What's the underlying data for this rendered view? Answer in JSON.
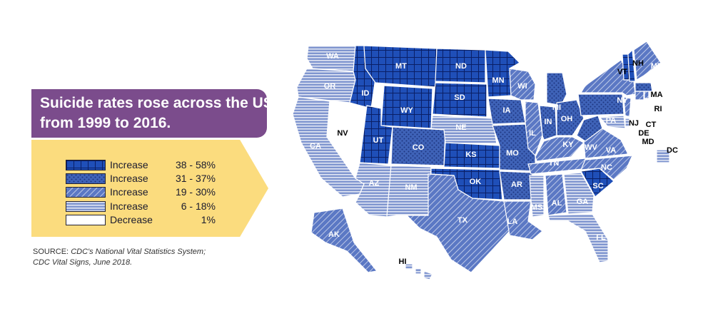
{
  "headline": {
    "line1": "Suicide rates rose across the US",
    "line2": "from 1999 to 2016."
  },
  "legend": [
    {
      "key": "c1",
      "label": "Increase",
      "range": "38 - 58%",
      "color": "#1f4fb8"
    },
    {
      "key": "c2",
      "label": "Increase",
      "range": "31 - 37%",
      "color": "#3f63b8"
    },
    {
      "key": "c3",
      "label": "Increase",
      "range": "19 - 30%",
      "color": "#5b78c4"
    },
    {
      "key": "c4",
      "label": "Increase",
      "range": "6 - 18%",
      "color": "#7f95cf"
    },
    {
      "key": "c5",
      "label": "Decrease",
      "range": "1%",
      "color": "#ffffff"
    }
  ],
  "source": {
    "prefix": "SOURCE:",
    "line1": "CDC's National Vital Statistics System;",
    "line2": "CDC Vital Signs, June 2018."
  },
  "states": [
    {
      "id": "WA",
      "cat": "c4"
    },
    {
      "id": "OR",
      "cat": "c4"
    },
    {
      "id": "CA",
      "cat": "c4"
    },
    {
      "id": "NV",
      "cat": "c5"
    },
    {
      "id": "ID",
      "cat": "c1"
    },
    {
      "id": "MT",
      "cat": "c1"
    },
    {
      "id": "WY",
      "cat": "c1"
    },
    {
      "id": "UT",
      "cat": "c1"
    },
    {
      "id": "AZ",
      "cat": "c4"
    },
    {
      "id": "NM",
      "cat": "c4"
    },
    {
      "id": "CO",
      "cat": "c2"
    },
    {
      "id": "ND",
      "cat": "c1"
    },
    {
      "id": "SD",
      "cat": "c1"
    },
    {
      "id": "NE",
      "cat": "c4"
    },
    {
      "id": "KS",
      "cat": "c1"
    },
    {
      "id": "OK",
      "cat": "c1"
    },
    {
      "id": "TX",
      "cat": "c3"
    },
    {
      "id": "MN",
      "cat": "c1"
    },
    {
      "id": "IA",
      "cat": "c2"
    },
    {
      "id": "MO",
      "cat": "c2"
    },
    {
      "id": "AR",
      "cat": "c2"
    },
    {
      "id": "LA",
      "cat": "c3"
    },
    {
      "id": "WI",
      "cat": "c3"
    },
    {
      "id": "IL",
      "cat": "c3"
    },
    {
      "id": "MI",
      "cat": "c2"
    },
    {
      "id": "IN",
      "cat": "c2"
    },
    {
      "id": "OH",
      "cat": "c2"
    },
    {
      "id": "KY",
      "cat": "c3"
    },
    {
      "id": "TN",
      "cat": "c3"
    },
    {
      "id": "MS",
      "cat": "c4"
    },
    {
      "id": "AL",
      "cat": "c3"
    },
    {
      "id": "GA",
      "cat": "c4"
    },
    {
      "id": "FL",
      "cat": "c4"
    },
    {
      "id": "SC",
      "cat": "c1"
    },
    {
      "id": "NC",
      "cat": "c3"
    },
    {
      "id": "VA",
      "cat": "c3"
    },
    {
      "id": "WV",
      "cat": "c2"
    },
    {
      "id": "PA",
      "cat": "c2"
    },
    {
      "id": "NY",
      "cat": "c3"
    },
    {
      "id": "NJ",
      "cat": "c3"
    },
    {
      "id": "DE",
      "cat": "c4"
    },
    {
      "id": "MD",
      "cat": "c4"
    },
    {
      "id": "DC",
      "cat": "c4"
    },
    {
      "id": "CT",
      "cat": "c3"
    },
    {
      "id": "RI",
      "cat": "c3"
    },
    {
      "id": "MA",
      "cat": "c2"
    },
    {
      "id": "VT",
      "cat": "c1"
    },
    {
      "id": "NH",
      "cat": "c1"
    },
    {
      "id": "ME",
      "cat": "c3"
    },
    {
      "id": "AK",
      "cat": "c3"
    },
    {
      "id": "HI",
      "cat": "c4"
    }
  ]
}
